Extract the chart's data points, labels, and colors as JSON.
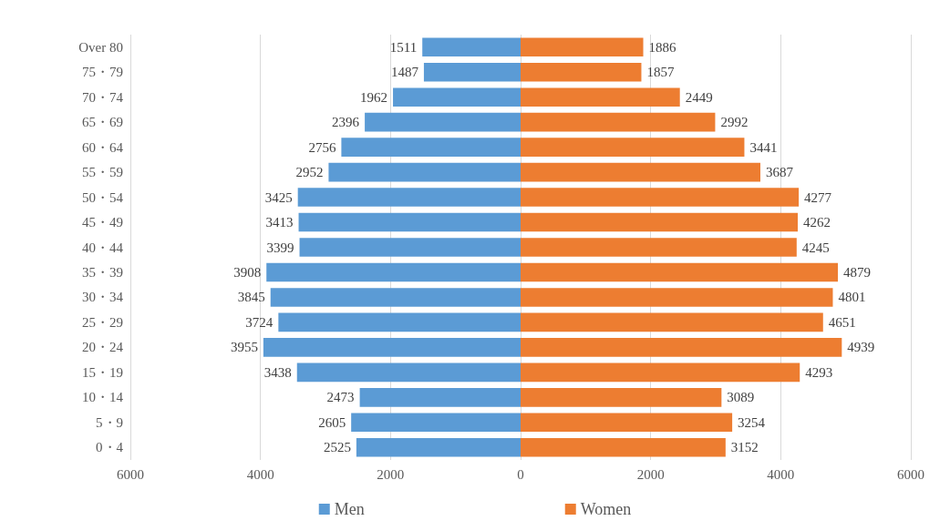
{
  "chart_data": {
    "type": "bar",
    "orientation": "horizontal",
    "categories": [
      "Over 80",
      "75・79",
      "70・74",
      "65・69",
      "60・64",
      "55・59",
      "50・54",
      "45・49",
      "40・44",
      "35・39",
      "30・34",
      "25・29",
      "20・24",
      "15・19",
      "10・14",
      "5・9",
      "0・4"
    ],
    "series": [
      {
        "name": "Men",
        "color": "#5b9bd5",
        "values": [
          1511,
          1487,
          1962,
          2396,
          2756,
          2952,
          3425,
          3413,
          3399,
          3908,
          3845,
          3724,
          3955,
          3438,
          2473,
          2605,
          2525
        ],
        "base": [
          -1511,
          -1487,
          -1962,
          -2396,
          -2756,
          -2952,
          -3425,
          -3413,
          -3399,
          -3908,
          -3845,
          -3724,
          -3955,
          -3438,
          -2473,
          -2605,
          -2525
        ]
      },
      {
        "name": "Women",
        "color": "#ed7d31",
        "values": [
          1886,
          1857,
          2449,
          2992,
          3441,
          3687,
          4277,
          4262,
          4245,
          4879,
          4801,
          4651,
          4939,
          4293,
          3089,
          3254,
          3152
        ],
        "base": [
          0,
          0,
          0,
          0,
          0,
          0,
          0,
          0,
          0,
          0,
          0,
          0,
          0,
          0,
          0,
          0,
          0
        ]
      }
    ],
    "data_labels": true,
    "xlim": [
      -6000,
      6000
    ],
    "xticks": [
      {
        "value": -6000,
        "label": "6000"
      },
      {
        "value": -4000,
        "label": "4000"
      },
      {
        "value": -2000,
        "label": "2000"
      },
      0,
      2000,
      4000,
      6000
    ],
    "grid": "x",
    "legend": "bottom"
  }
}
